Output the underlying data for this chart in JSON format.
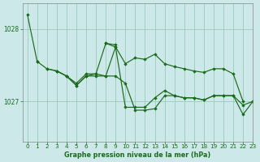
{
  "title": "Graphe pression niveau de la mer (hPa)",
  "bg_color": "#cce8e8",
  "grid_color": "#99ccbb",
  "line_color": "#1a6b1a",
  "marker_color": "#1a6b1a",
  "xlim": [
    -0.5,
    23
  ],
  "ylim": [
    1026.45,
    1028.35
  ],
  "yticks": [
    1027,
    1028
  ],
  "xticks": [
    0,
    1,
    2,
    3,
    4,
    5,
    6,
    7,
    8,
    9,
    10,
    11,
    12,
    13,
    14,
    15,
    16,
    17,
    18,
    19,
    20,
    21,
    22,
    23
  ],
  "series": [
    {
      "x": [
        0,
        1
      ],
      "y": [
        1028.2,
        1027.55
      ]
    },
    {
      "x": [
        1,
        2,
        3,
        4,
        5,
        6,
        7,
        8,
        9,
        10,
        11,
        12,
        13,
        14,
        15,
        16,
        17,
        18,
        19,
        20,
        21,
        22
      ],
      "y": [
        1027.55,
        1027.45,
        1027.42,
        1027.35,
        1027.25,
        1027.38,
        1027.38,
        1027.8,
        1027.75,
        1027.52,
        1027.6,
        1027.58,
        1027.65,
        1027.52,
        1027.48,
        1027.45,
        1027.42,
        1027.4,
        1027.45,
        1027.45,
        1027.38,
        1027.0
      ]
    },
    {
      "x": [
        2,
        3,
        4,
        5,
        6,
        7,
        8,
        9,
        10,
        11,
        12,
        13,
        14,
        15,
        16,
        17,
        18,
        19,
        20,
        21,
        22,
        23
      ],
      "y": [
        1027.45,
        1027.42,
        1027.35,
        1027.22,
        1027.35,
        1027.38,
        1027.35,
        1027.75,
        1026.92,
        1026.92,
        1026.92,
        1027.05,
        1027.15,
        1027.08,
        1027.05,
        1027.05,
        1027.02,
        1027.08,
        1027.08,
        1027.08,
        1026.95,
        1027.0
      ]
    },
    {
      "x": [
        3,
        4,
        5,
        6,
        7,
        8,
        9,
        10,
        11,
        12,
        13,
        14,
        15,
        16,
        17,
        18,
        19,
        20,
        21,
        22,
        23
      ],
      "y": [
        1027.42,
        1027.35,
        1027.22,
        1027.35,
        1027.35,
        1027.35,
        1027.35,
        1027.25,
        1026.88,
        1026.88,
        1026.9,
        1027.08,
        1027.08,
        1027.05,
        1027.05,
        1027.02,
        1027.08,
        1027.08,
        1027.08,
        1026.82,
        1027.0
      ]
    },
    {
      "x": [
        8,
        9
      ],
      "y": [
        1027.8,
        1027.78
      ]
    }
  ]
}
